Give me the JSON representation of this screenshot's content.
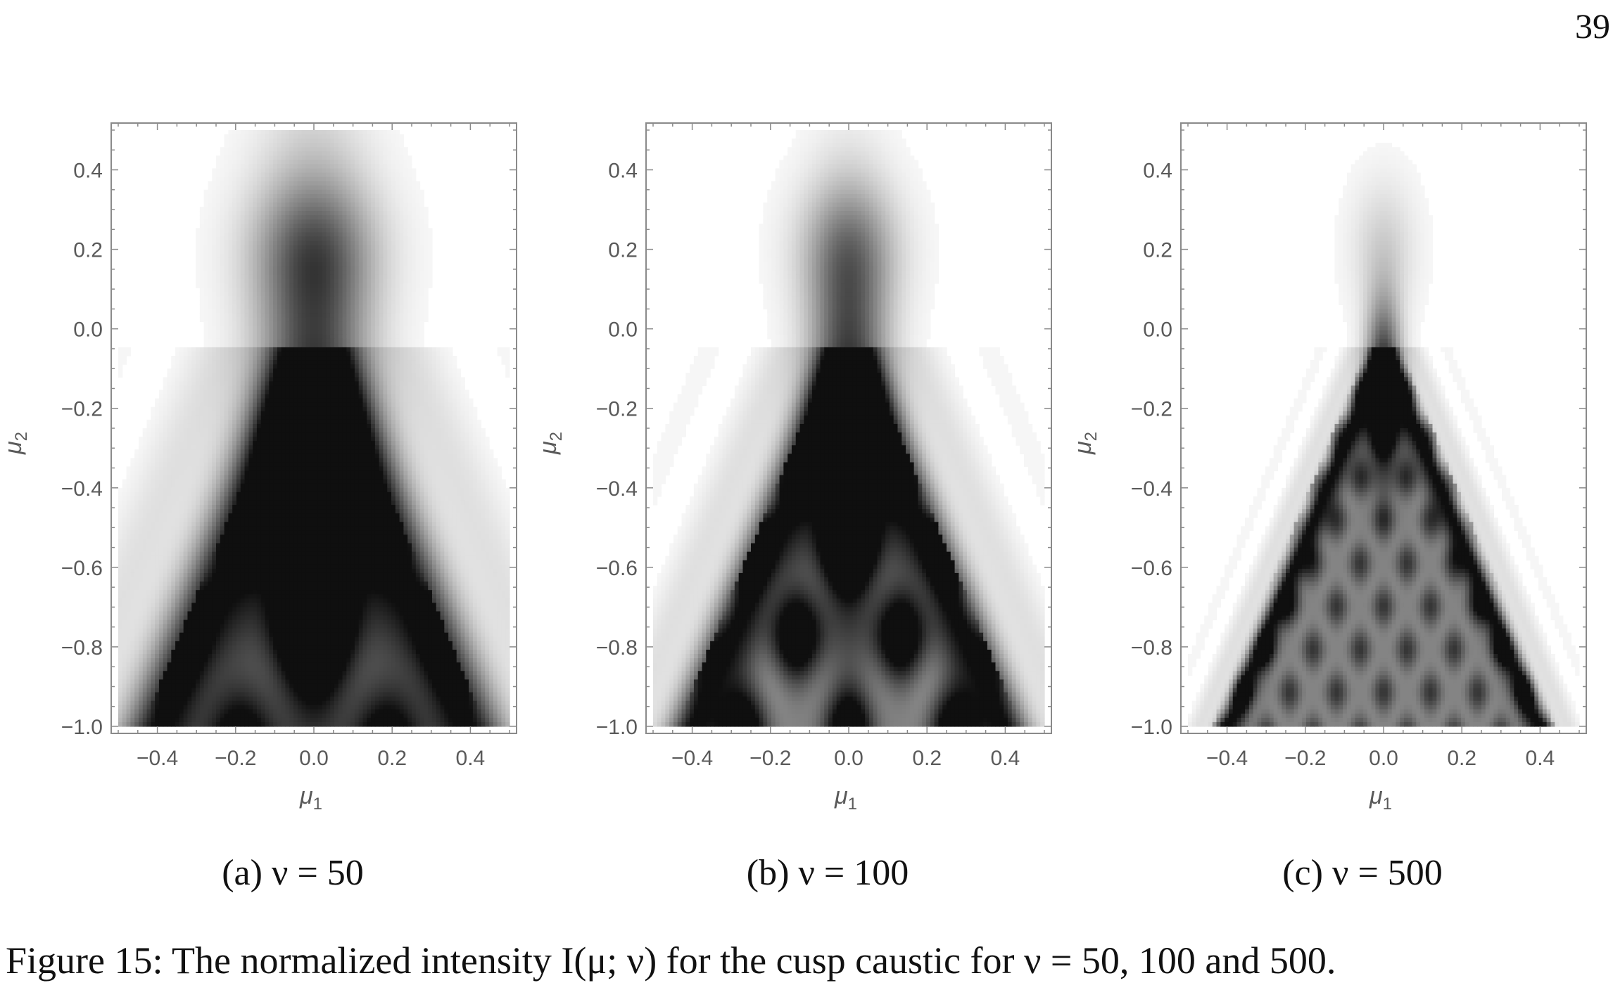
{
  "page_number": "39",
  "caption": "Figure 15: The normalized intensity I(μ; ν) for the cusp caustic for ν = 50, 100 and 500.",
  "chart_data": [
    {
      "type": "heatmap",
      "subcaption": "(a) ν = 50",
      "nu": 50,
      "xlabel": "μ1",
      "ylabel": "μ2",
      "xlim": [
        -0.5,
        0.5
      ],
      "ylim": [
        -1.0,
        0.5
      ],
      "xticks": [
        "−0.4",
        "−0.2",
        "0.0",
        "0.2",
        "0.4"
      ],
      "xtick_values": [
        -0.4,
        -0.2,
        0.0,
        0.2,
        0.4
      ],
      "yticks": [
        "0.4",
        "0.2",
        "0.0",
        "−0.2",
        "−0.4",
        "−0.6",
        "−0.8",
        "−1.0"
      ],
      "ytick_values": [
        0.4,
        0.2,
        0.0,
        -0.2,
        -0.4,
        -0.6,
        -0.8,
        -1.0
      ],
      "colormap": "grayscale (dark = high intensity)"
    },
    {
      "type": "heatmap",
      "subcaption": "(b) ν = 100",
      "nu": 100,
      "xlabel": "μ1",
      "ylabel": "μ2",
      "xlim": [
        -0.5,
        0.5
      ],
      "ylim": [
        -1.0,
        0.5
      ],
      "xticks": [
        "−0.4",
        "−0.2",
        "0.0",
        "0.2",
        "0.4"
      ],
      "xtick_values": [
        -0.4,
        -0.2,
        0.0,
        0.2,
        0.4
      ],
      "yticks": [
        "0.4",
        "0.2",
        "0.0",
        "−0.2",
        "−0.4",
        "−0.6",
        "−0.8",
        "−1.0"
      ],
      "ytick_values": [
        0.4,
        0.2,
        0.0,
        -0.2,
        -0.4,
        -0.6,
        -0.8,
        -1.0
      ],
      "colormap": "grayscale (dark = high intensity)"
    },
    {
      "type": "heatmap",
      "subcaption": "(c) ν = 500",
      "nu": 500,
      "xlabel": "μ1",
      "ylabel": "μ2",
      "xlim": [
        -0.5,
        0.5
      ],
      "ylim": [
        -1.0,
        0.5
      ],
      "xticks": [
        "−0.4",
        "−0.2",
        "0.0",
        "0.2",
        "0.4"
      ],
      "xtick_values": [
        -0.4,
        -0.2,
        0.0,
        0.2,
        0.4
      ],
      "yticks": [
        "0.4",
        "0.2",
        "0.0",
        "−0.2",
        "−0.4",
        "−0.6",
        "−0.8",
        "−1.0"
      ],
      "ytick_values": [
        0.4,
        0.2,
        0.0,
        -0.2,
        -0.4,
        -0.6,
        -0.8,
        -1.0
      ],
      "colormap": "grayscale (dark = high intensity)"
    }
  ]
}
